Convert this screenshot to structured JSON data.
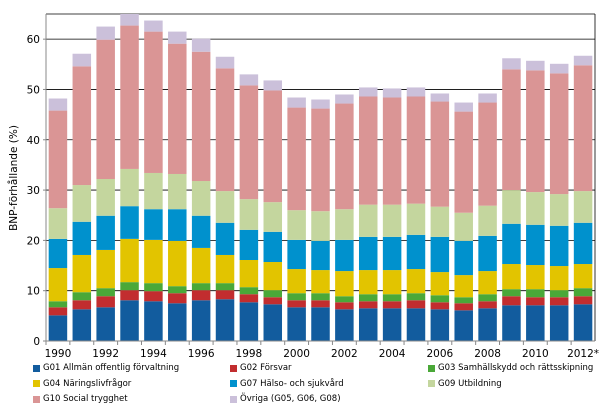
{
  "chart_data": {
    "type": "bar",
    "stacked": true,
    "title": "",
    "xlabel": "",
    "ylabel": "BNP-förhållande (%)",
    "ylim": [
      0,
      65
    ],
    "yticks": [
      0,
      10,
      20,
      30,
      40,
      50,
      60
    ],
    "grid": true,
    "legend_placement": "bottom",
    "categories": [
      "1990",
      "1991",
      "1992",
      "1993",
      "1994",
      "1995",
      "1996",
      "1997",
      "1998",
      "1999",
      "2000",
      "2001",
      "2002",
      "2003",
      "2004",
      "2005",
      "2006",
      "2007",
      "2008",
      "2009",
      "2010",
      "2011",
      "2012*"
    ],
    "xtick_labels": [
      "1990",
      "1992",
      "1994",
      "1996",
      "1998",
      "2000",
      "2002",
      "2004",
      "2006",
      "2008",
      "2010",
      "2012*"
    ],
    "series": [
      {
        "name": "G01 Allmän offentlig förvaltning",
        "color": "#125c9e",
        "values": [
          5.1,
          6.3,
          6.7,
          8.1,
          7.9,
          7.5,
          8.1,
          8.3,
          7.7,
          7.3,
          6.7,
          6.7,
          6.3,
          6.5,
          6.5,
          6.5,
          6.3,
          6.1,
          6.5,
          7.1,
          7.1,
          7.1,
          7.3
        ]
      },
      {
        "name": "G02 Försvar",
        "color": "#c22d2f",
        "values": [
          1.6,
          1.8,
          2.2,
          2.0,
          2.0,
          2.0,
          2.0,
          1.8,
          1.6,
          1.4,
          1.4,
          1.4,
          1.4,
          1.4,
          1.4,
          1.6,
          1.4,
          1.4,
          1.4,
          1.8,
          1.6,
          1.6,
          1.6
        ]
      },
      {
        "name": "G03 Samhällskydd och rättsskipning",
        "color": "#4aa838",
        "values": [
          1.2,
          1.6,
          1.6,
          1.6,
          1.6,
          1.4,
          1.4,
          1.4,
          1.4,
          1.4,
          1.4,
          1.4,
          1.2,
          1.4,
          1.4,
          1.4,
          1.4,
          1.2,
          1.4,
          1.4,
          1.6,
          1.4,
          1.6
        ]
      },
      {
        "name": "G04 Näringslivfrågor",
        "color": "#e2c400",
        "values": [
          6.6,
          7.4,
          7.6,
          8.6,
          8.6,
          9.0,
          7.0,
          5.6,
          5.4,
          5.6,
          4.8,
          4.6,
          5.0,
          4.8,
          4.8,
          4.8,
          4.6,
          4.4,
          4.6,
          5.0,
          4.8,
          4.8,
          4.8
        ]
      },
      {
        "name": "G07 Hälso- och sjukvård",
        "color": "#0091cd",
        "values": [
          5.8,
          6.6,
          6.8,
          6.5,
          6.1,
          6.3,
          6.4,
          6.4,
          6.0,
          6.0,
          5.8,
          5.8,
          6.2,
          6.6,
          6.6,
          6.8,
          7.0,
          6.8,
          7.0,
          8.0,
          8.0,
          8.0,
          8.2
        ]
      },
      {
        "name": "G09 Utbildning",
        "color": "#c4d69e",
        "values": [
          6.1,
          7.3,
          7.3,
          7.4,
          7.2,
          7.0,
          6.9,
          6.3,
          6.1,
          5.9,
          5.9,
          5.9,
          6.1,
          6.4,
          6.4,
          6.2,
          6.0,
          5.6,
          6.0,
          6.7,
          6.5,
          6.3,
          6.3
        ]
      },
      {
        "name": "G10 Social trygghet",
        "color": "#da9595",
        "values": [
          19.4,
          23.6,
          27.7,
          28.5,
          28.1,
          25.9,
          25.7,
          24.4,
          22.6,
          22.2,
          20.4,
          20.4,
          21.0,
          21.5,
          21.3,
          21.3,
          20.9,
          20.1,
          20.5,
          24.0,
          24.2,
          24.0,
          25.0
        ]
      },
      {
        "name": "Övriga (G05, G06, G08)",
        "color": "#cbc0da",
        "values": [
          2.4,
          2.5,
          2.6,
          2.3,
          2.2,
          2.4,
          2.6,
          2.3,
          2.2,
          2.0,
          2.0,
          1.8,
          1.8,
          1.8,
          1.8,
          1.8,
          1.6,
          1.8,
          1.8,
          2.2,
          1.9,
          1.9,
          1.9
        ]
      }
    ]
  }
}
